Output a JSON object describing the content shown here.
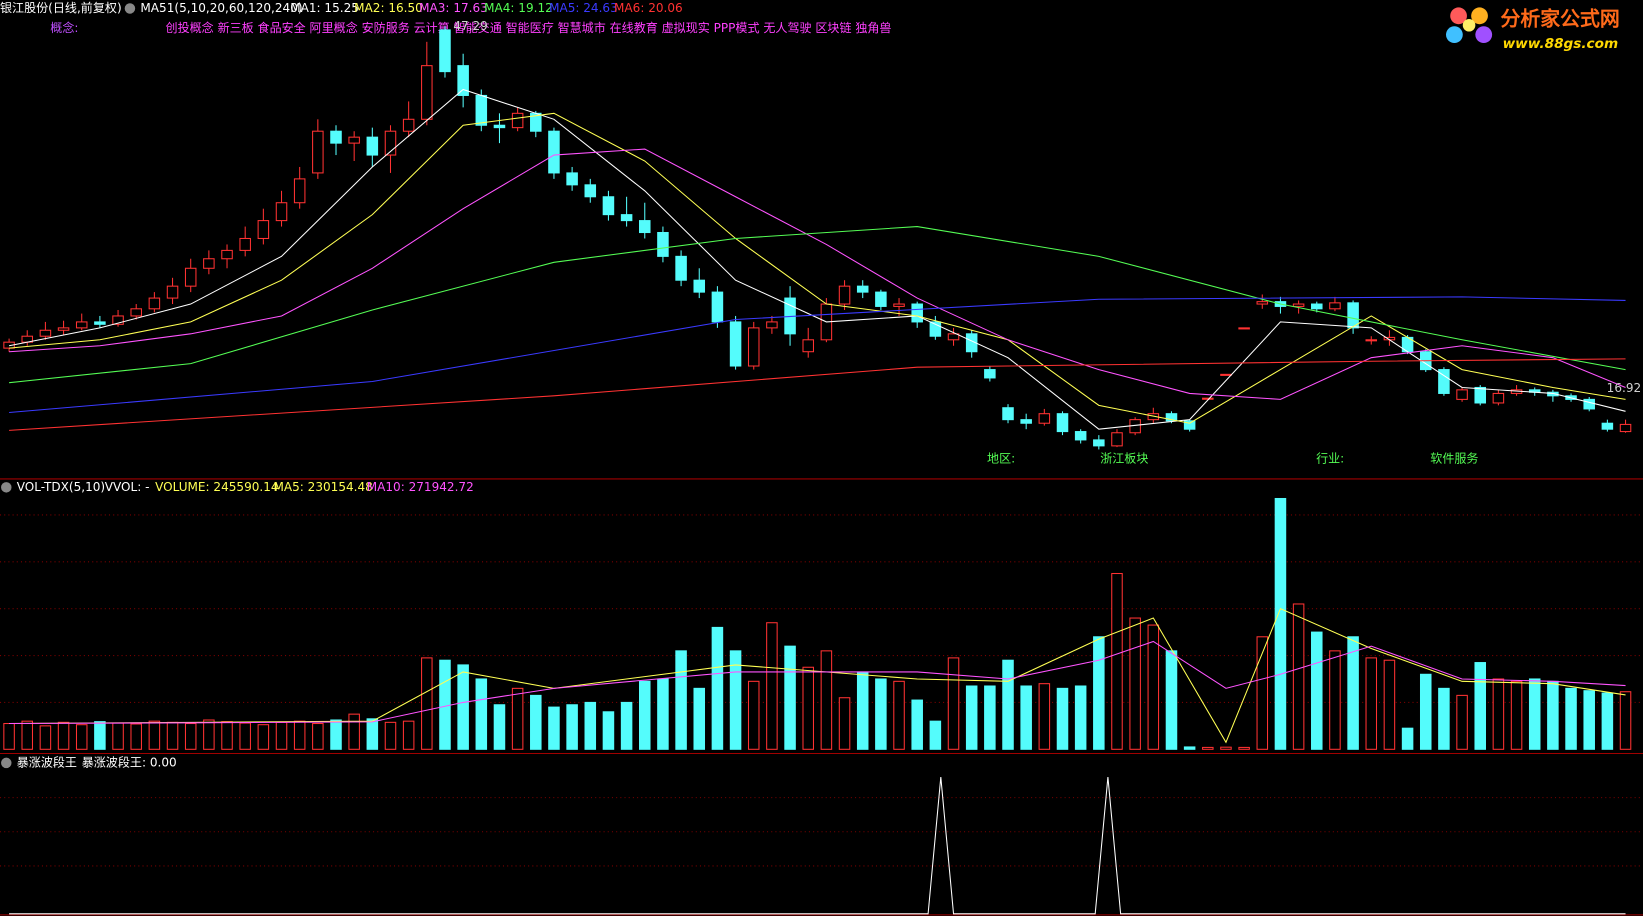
{
  "header": {
    "stock": "银江股份(日线,前复权)",
    "indicator": "MA51(5,10,20,60,120,240)",
    "concept_label": "概念:",
    "concepts": "创投概念 新三板 食品安全 阿里概念 安防服务 云计算 智能交通 智能医疗 智慧城市 在线教育 虚拟现实 PPP模式 无人驾驶 区块链 独角兽",
    "region_label": "地区:",
    "region": "浙江板块",
    "industry_label": "行业:",
    "industry": "软件服务"
  },
  "logo": {
    "title": "分析家公式网",
    "url": "www.88gs.com"
  },
  "chart_data": [
    {
      "type": "candlestick",
      "xlim": [
        -0.5,
        89.5
      ],
      "ylim": [
        9.5,
        49.5
      ],
      "colors": {
        "up": "#ff3232",
        "down": "#54fcfc"
      },
      "ohlc": [
        [
          20.3,
          21.1,
          20.0,
          20.8
        ],
        [
          20.8,
          21.8,
          20.5,
          21.3
        ],
        [
          21.3,
          22.5,
          21.0,
          21.8
        ],
        [
          21.8,
          22.6,
          21.4,
          22.0
        ],
        [
          22.0,
          23.2,
          21.8,
          22.5
        ],
        [
          22.5,
          23.0,
          22.0,
          22.3
        ],
        [
          22.3,
          23.5,
          22.1,
          23.0
        ],
        [
          23.0,
          24.0,
          22.7,
          23.6
        ],
        [
          23.6,
          25.0,
          23.3,
          24.5
        ],
        [
          24.5,
          26.2,
          24.0,
          25.5
        ],
        [
          25.5,
          27.8,
          25.0,
          27.0
        ],
        [
          27.0,
          28.5,
          26.5,
          27.8
        ],
        [
          27.8,
          29.0,
          27.0,
          28.5
        ],
        [
          28.5,
          30.5,
          28.0,
          29.5
        ],
        [
          29.5,
          32.0,
          29.0,
          31.0
        ],
        [
          31.0,
          33.5,
          30.5,
          32.5
        ],
        [
          32.5,
          35.5,
          32.0,
          34.5
        ],
        [
          35.0,
          39.5,
          34.5,
          38.5
        ],
        [
          38.5,
          39.0,
          36.5,
          37.5
        ],
        [
          37.5,
          38.5,
          36.0,
          38.0
        ],
        [
          38.0,
          38.8,
          35.5,
          36.5
        ],
        [
          36.5,
          39.0,
          35.0,
          38.5
        ],
        [
          38.5,
          41.0,
          38.0,
          39.5
        ],
        [
          39.5,
          46.0,
          39.0,
          44.0
        ],
        [
          47.0,
          47.29,
          43.0,
          43.5
        ],
        [
          44.0,
          45.0,
          40.5,
          41.5
        ],
        [
          41.5,
          42.0,
          38.5,
          39.0
        ],
        [
          39.0,
          40.0,
          37.5,
          38.8
        ],
        [
          38.8,
          40.5,
          38.5,
          40.0
        ],
        [
          40.0,
          40.2,
          38.0,
          38.5
        ],
        [
          38.5,
          38.8,
          34.5,
          35.0
        ],
        [
          35.0,
          35.5,
          33.5,
          34.0
        ],
        [
          34.0,
          34.5,
          32.5,
          33.0
        ],
        [
          33.0,
          33.5,
          31.0,
          31.5
        ],
        [
          31.5,
          33.0,
          30.5,
          31.0
        ],
        [
          31.0,
          32.5,
          29.5,
          30.0
        ],
        [
          30.0,
          30.5,
          27.5,
          28.0
        ],
        [
          28.0,
          28.5,
          25.5,
          26.0
        ],
        [
          26.0,
          27.0,
          24.5,
          25.0
        ],
        [
          25.0,
          25.5,
          22.0,
          22.5
        ],
        [
          22.5,
          23.0,
          18.5,
          18.8
        ],
        [
          18.8,
          22.5,
          18.5,
          22.0
        ],
        [
          22.0,
          23.0,
          21.5,
          22.5
        ],
        [
          24.5,
          25.5,
          20.5,
          21.5
        ],
        [
          20.0,
          22.0,
          19.5,
          21.0
        ],
        [
          21.0,
          24.5,
          20.8,
          24.0
        ],
        [
          24.0,
          26.0,
          23.5,
          25.5
        ],
        [
          25.5,
          26.0,
          24.5,
          25.0
        ],
        [
          25.0,
          25.2,
          23.5,
          23.8
        ],
        [
          23.8,
          24.5,
          23.0,
          24.0
        ],
        [
          24.0,
          24.2,
          22.0,
          22.5
        ],
        [
          22.5,
          23.0,
          21.0,
          21.3
        ],
        [
          21.0,
          22.0,
          20.5,
          21.5
        ],
        [
          21.5,
          21.8,
          19.5,
          20.0
        ],
        [
          18.5,
          18.8,
          17.5,
          17.8
        ],
        [
          15.3,
          15.6,
          14.0,
          14.3
        ],
        [
          14.3,
          14.8,
          13.5,
          14.0
        ],
        [
          14.0,
          15.2,
          13.8,
          14.8
        ],
        [
          14.8,
          15.0,
          13.0,
          13.3
        ],
        [
          13.3,
          13.5,
          12.3,
          12.6
        ],
        [
          12.6,
          13.0,
          11.8,
          12.1
        ],
        [
          12.1,
          13.5,
          12.0,
          13.2
        ],
        [
          13.2,
          14.5,
          13.0,
          14.3
        ],
        [
          14.3,
          15.3,
          14.0,
          14.8
        ],
        [
          14.8,
          15.0,
          14.0,
          14.2
        ],
        [
          14.2,
          14.3,
          13.3,
          13.5
        ],
        [
          16.1,
          16.1,
          16.1,
          16.1
        ],
        [
          18.1,
          18.1,
          18.1,
          18.1
        ],
        [
          22.0,
          22.0,
          22.0,
          22.0
        ],
        [
          24.0,
          24.8,
          23.6,
          24.2
        ],
        [
          24.2,
          24.6,
          23.2,
          23.8
        ],
        [
          23.8,
          24.3,
          23.2,
          24.0
        ],
        [
          24.0,
          24.2,
          23.3,
          23.6
        ],
        [
          23.6,
          24.6,
          23.4,
          24.1
        ],
        [
          24.1,
          24.3,
          21.5,
          22.0
        ],
        [
          21.0,
          21.3,
          20.6,
          21.0
        ],
        [
          21.0,
          21.8,
          20.5,
          21.2
        ],
        [
          21.2,
          21.4,
          19.8,
          20.0
        ],
        [
          20.0,
          20.2,
          18.3,
          18.5
        ],
        [
          18.5,
          18.7,
          16.3,
          16.5
        ],
        [
          16.0,
          17.0,
          15.8,
          16.8
        ],
        [
          17.0,
          17.2,
          15.5,
          15.7
        ],
        [
          15.7,
          16.8,
          15.5,
          16.5
        ],
        [
          16.5,
          17.2,
          16.3,
          16.8
        ],
        [
          16.8,
          17.0,
          16.3,
          16.6
        ],
        [
          16.6,
          16.8,
          15.8,
          16.3
        ],
        [
          16.3,
          16.5,
          15.8,
          16.0
        ],
        [
          16.0,
          16.2,
          15.0,
          15.2
        ],
        [
          14.0,
          14.3,
          13.3,
          13.5
        ],
        [
          13.3,
          14.3,
          13.2,
          13.9
        ]
      ],
      "series": [
        {
          "name": "MA1: 15.25",
          "color": "#ffffff",
          "x": [
            0,
            5,
            10,
            15,
            20,
            25,
            30,
            35,
            40,
            45,
            50,
            55,
            60,
            65,
            70,
            75,
            80,
            85,
            89
          ],
          "values": [
            20.5,
            22.0,
            24.0,
            28.0,
            35.5,
            42.0,
            39.5,
            33.5,
            26.0,
            22.5,
            23.0,
            19.5,
            13.5,
            14.3,
            22.5,
            22.0,
            17.0,
            16.5,
            15.0
          ]
        },
        {
          "name": "MA2: 16.50",
          "color": "#ffff54",
          "x": [
            0,
            5,
            10,
            15,
            20,
            25,
            30,
            35,
            40,
            45,
            50,
            55,
            60,
            65,
            70,
            75,
            80,
            85,
            89
          ],
          "values": [
            20.3,
            21.0,
            22.5,
            26.0,
            31.5,
            39.0,
            40.0,
            36.0,
            29.5,
            24.0,
            23.0,
            21.0,
            15.5,
            14.0,
            18.5,
            23.0,
            18.5,
            17.0,
            16.0
          ]
        },
        {
          "name": "MA3: 17.63",
          "color": "#ff54ff",
          "x": [
            0,
            5,
            10,
            15,
            20,
            25,
            30,
            35,
            40,
            45,
            50,
            55,
            60,
            65,
            70,
            75,
            80,
            85,
            89
          ],
          "values": [
            20.0,
            20.5,
            21.5,
            23.0,
            27.0,
            32.0,
            36.5,
            37.0,
            33.0,
            29.0,
            24.5,
            21.0,
            18.5,
            16.5,
            16.0,
            19.5,
            20.5,
            19.5,
            17.0
          ]
        },
        {
          "name": "MA4: 19.12",
          "color": "#54fc54",
          "x": [
            0,
            10,
            20,
            30,
            40,
            50,
            60,
            70,
            80,
            89
          ],
          "values": [
            17.4,
            19.0,
            23.5,
            27.5,
            29.5,
            30.5,
            28.0,
            24.0,
            21.0,
            18.5
          ]
        },
        {
          "name": "MA5: 24.63",
          "color": "#3a3aff",
          "x": [
            0,
            20,
            40,
            60,
            80,
            89
          ],
          "values": [
            14.9,
            17.5,
            22.7,
            24.4,
            24.6,
            24.3
          ]
        },
        {
          "name": "MA6: 20.06",
          "color": "#ff3232",
          "x": [
            0,
            30,
            50,
            75,
            89
          ],
          "values": [
            13.4,
            16.3,
            18.7,
            19.2,
            19.4
          ]
        }
      ],
      "annotations": [
        {
          "text": "47.29",
          "x": 24,
          "y": 47.29
        },
        {
          "text": "16.92",
          "x": 87.5,
          "y": 16.92
        }
      ]
    },
    {
      "type": "volume",
      "title": "VOL-TDX(5,10)",
      "subtitle": "VVOL: -",
      "value_label": "VOLUME: 245590.14",
      "xlim": [
        -0.5,
        89.5
      ],
      "ylim": [
        0,
        1140000
      ],
      "yticks": [
        200000,
        400000,
        600000,
        800000,
        1000000
      ],
      "grid": true,
      "values": [
        110000,
        120000,
        100000,
        115000,
        105000,
        118000,
        112000,
        108000,
        120000,
        115000,
        110000,
        125000,
        118000,
        112000,
        105000,
        115000,
        120000,
        110000,
        125000,
        150000,
        130000,
        115000,
        120000,
        390000,
        380000,
        360000,
        300000,
        190000,
        260000,
        230000,
        180000,
        190000,
        200000,
        160000,
        200000,
        290000,
        300000,
        420000,
        260000,
        520000,
        420000,
        290000,
        540000,
        440000,
        350000,
        420000,
        220000,
        330000,
        300000,
        290000,
        210000,
        120000,
        390000,
        270000,
        270000,
        380000,
        270000,
        280000,
        260000,
        270000,
        480000,
        750000,
        560000,
        530000,
        420000,
        10000,
        8000,
        9000,
        8000,
        480000,
        1070000,
        620000,
        500000,
        420000,
        480000,
        390000,
        380000,
        90000,
        320000,
        260000,
        230000,
        370000,
        300000,
        290000,
        300000,
        290000,
        260000,
        250000,
        240000,
        245590.14
      ],
      "series": [
        {
          "name": "MA5: 230154.48",
          "color": "#ffff54",
          "x": [
            0,
            10,
            20,
            25,
            30,
            40,
            50,
            55,
            60,
            63,
            67,
            70,
            75,
            80,
            85,
            89
          ],
          "values": [
            110000,
            115000,
            120000,
            330000,
            260000,
            360000,
            300000,
            290000,
            470000,
            560000,
            30000,
            600000,
            430000,
            290000,
            280000,
            232000
          ]
        },
        {
          "name": "MA10: 271942.72",
          "color": "#ff54ff",
          "x": [
            0,
            10,
            20,
            25,
            30,
            40,
            50,
            55,
            60,
            63,
            67,
            70,
            75,
            80,
            85,
            89
          ],
          "values": [
            110000,
            113000,
            117000,
            200000,
            260000,
            330000,
            330000,
            300000,
            380000,
            460000,
            260000,
            320000,
            440000,
            300000,
            290000,
            272000
          ]
        }
      ]
    },
    {
      "type": "line",
      "title": "暴涨波段王",
      "xlim": [
        -0.5,
        89.5
      ],
      "ylim": [
        0,
        1.05
      ],
      "yticks": [
        0.35,
        0.6,
        0.85
      ],
      "grid": true,
      "series": [
        {
          "name": "暴涨波段王: 0.00",
          "color": "#ffffff",
          "x": [
            0,
            50.6,
            51.3,
            52.0,
            59.8,
            60.5,
            61.2,
            89
          ],
          "values": [
            0,
            0,
            1,
            0,
            0,
            1,
            0,
            0
          ]
        }
      ]
    }
  ]
}
